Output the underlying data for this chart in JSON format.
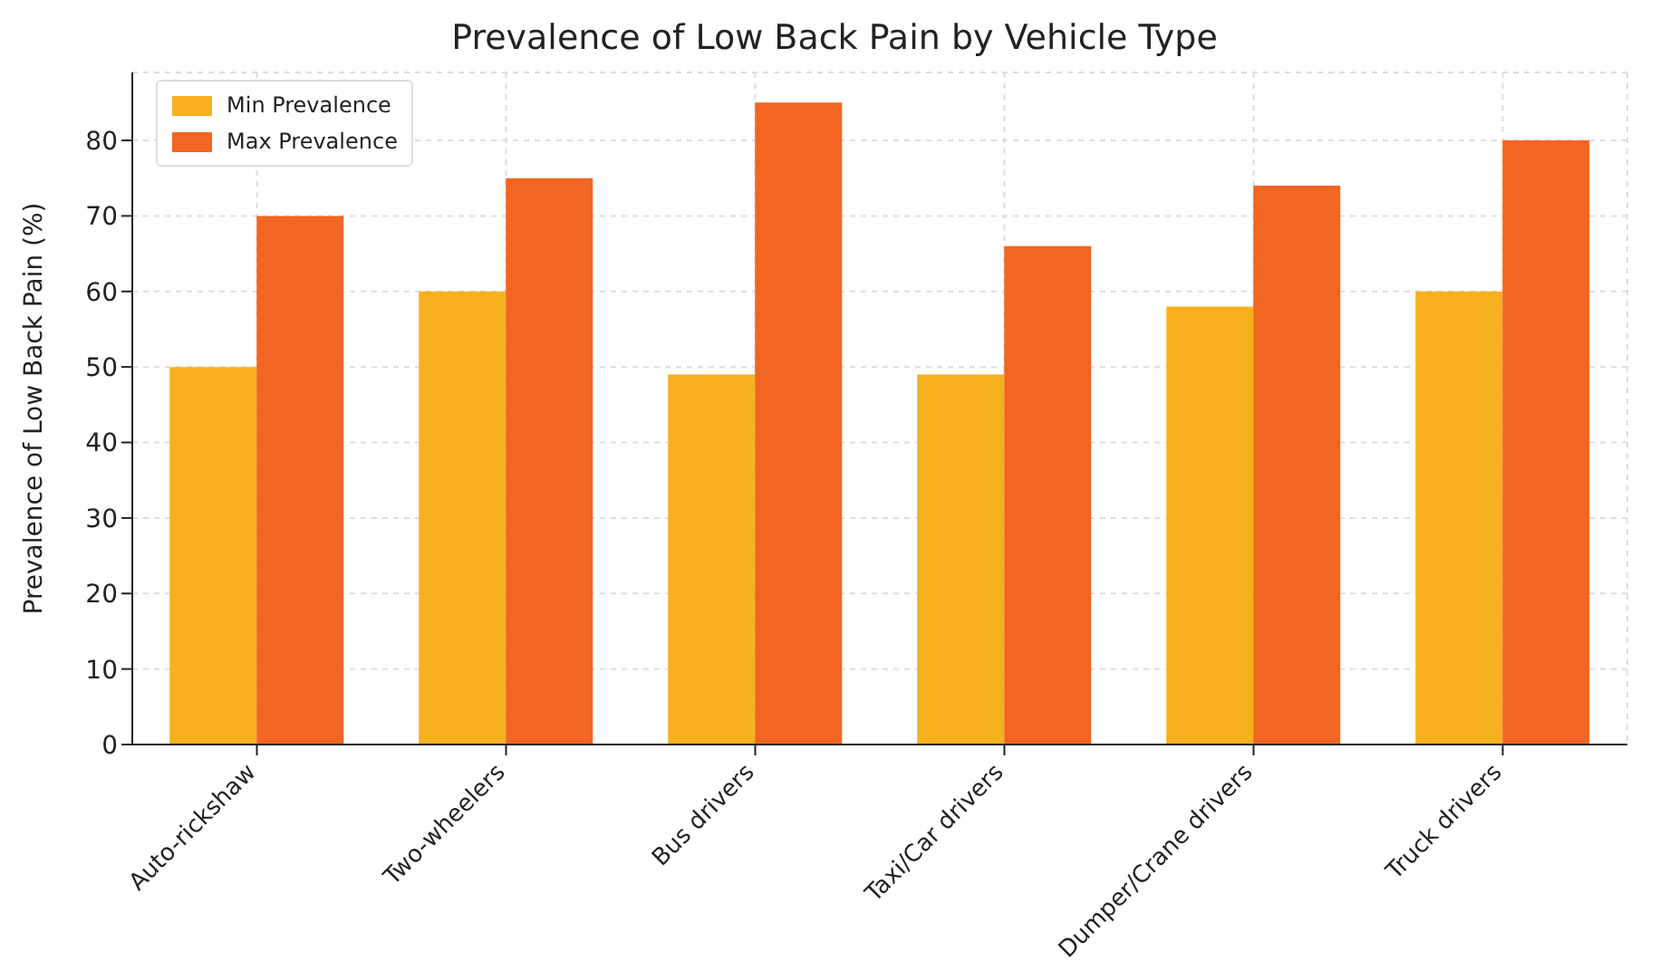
{
  "chart_data": {
    "type": "bar",
    "title": "Prevalence of Low Back Pain by Vehicle Type",
    "ylabel": "Prevalence of Low Back Pain (%)",
    "categories": [
      "Auto-rickshaw",
      "Two-wheelers",
      "Bus drivers",
      "Taxi/Car drivers",
      "Dumper/Crane drivers",
      "Truck drivers"
    ],
    "series": [
      {
        "name": "Min Prevalence",
        "color": "#f7b01e",
        "values": [
          50,
          60,
          49,
          49,
          58,
          60
        ]
      },
      {
        "name": "Max Prevalence",
        "color": "#f26522",
        "values": [
          70,
          75,
          85,
          66,
          74,
          80
        ]
      }
    ],
    "ylim": [
      0,
      89
    ],
    "yticks": [
      0,
      10,
      20,
      30,
      40,
      50,
      60,
      70,
      80
    ],
    "grid": true,
    "legend": "top left"
  }
}
